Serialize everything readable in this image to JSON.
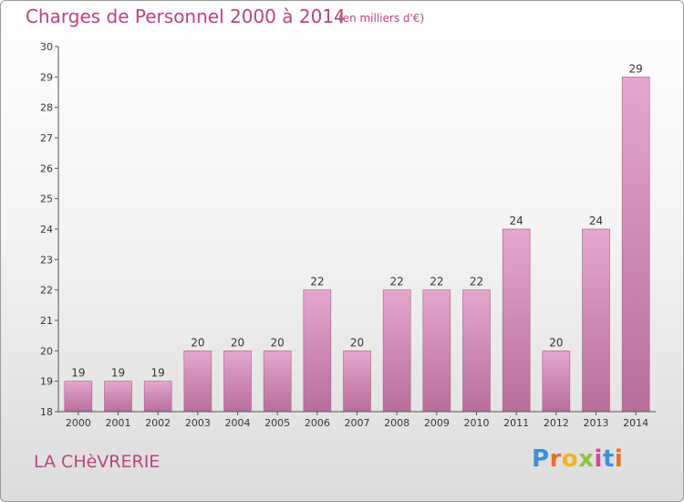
{
  "header": {
    "title": "Charges de Personnel 2000 à 2014",
    "subtitle": "(en milliers d'€)"
  },
  "footer": {
    "commune": "LA CHèVRERIE",
    "logo_letters": [
      "P",
      "r",
      "o",
      "x",
      "i",
      "t",
      "i"
    ],
    "logo_colors": [
      "#3d8fd8",
      "#e8702a",
      "#f0b321",
      "#8cc63f",
      "#d0479a",
      "#3d8fd8",
      "#e8702a"
    ]
  },
  "colors": {
    "bar_light": "#e4a8cc",
    "bar_dark": "#b86f98",
    "accent": "#b8467e"
  },
  "chart_data": {
    "type": "bar",
    "title": "Charges de Personnel 2000 à 2014",
    "subtitle": "(en milliers d'€)",
    "xlabel": "",
    "ylabel": "",
    "categories": [
      "2000",
      "2001",
      "2002",
      "2003",
      "2004",
      "2005",
      "2006",
      "2007",
      "2008",
      "2009",
      "2010",
      "2011",
      "2012",
      "2013",
      "2014"
    ],
    "values": [
      19,
      19,
      19,
      20,
      20,
      20,
      22,
      20,
      22,
      22,
      22,
      24,
      20,
      24,
      29
    ],
    "ylim": [
      18,
      30
    ],
    "yticks": [
      18,
      19,
      20,
      21,
      22,
      23,
      24,
      25,
      26,
      27,
      28,
      29,
      30
    ],
    "grid": false,
    "legend": "none"
  }
}
